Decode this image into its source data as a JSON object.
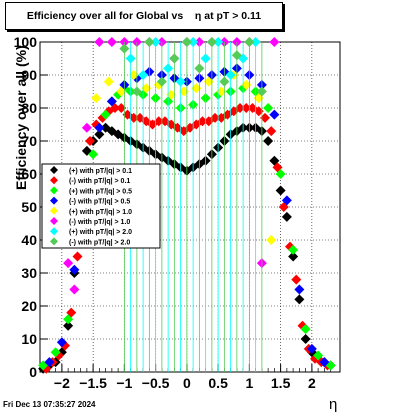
{
  "title": "Efficiency over all for Global vs    η at pT > 0.11",
  "footer": "Fri Dec 13 07:35:27 2024",
  "chart_data": {
    "type": "scatter",
    "xlabel": "η",
    "ylabel": "Efficiency over all (%)",
    "xlim": [
      -2.35,
      2.45
    ],
    "ylim": [
      0,
      100
    ],
    "xticks": [
      -2,
      -1.5,
      -1,
      -0.5,
      0,
      0.5,
      1,
      1.5,
      2
    ],
    "xtick_labels": [
      "−2",
      "−1.5",
      "−1",
      "−0.5",
      "0",
      "0.5",
      "1",
      "1.5",
      "2"
    ],
    "yticks": [
      0,
      10,
      20,
      30,
      40,
      50,
      60,
      70,
      80,
      90,
      100
    ],
    "grid": true,
    "legend_position": "left",
    "series": [
      {
        "name": "(+) with pT/|q| > 0.1",
        "color": "#000000",
        "x": [
          -2.3,
          -2.2,
          -2.1,
          -2.0,
          -1.9,
          -1.8,
          -1.7,
          -1.6,
          -1.5,
          -1.4,
          -1.3,
          -1.2,
          -1.1,
          -1.0,
          -0.9,
          -0.8,
          -0.7,
          -0.6,
          -0.5,
          -0.4,
          -0.3,
          -0.2,
          -0.1,
          0.0,
          0.1,
          0.2,
          0.3,
          0.4,
          0.5,
          0.6,
          0.7,
          0.8,
          0.9,
          1.0,
          1.1,
          1.2,
          1.3,
          1.4,
          1.5,
          1.6,
          1.7,
          1.8,
          1.9,
          2.0,
          2.1,
          2.2,
          2.3
        ],
        "y": [
          1,
          2,
          3,
          6,
          14,
          30,
          53,
          67,
          70,
          72,
          74,
          73,
          72,
          71,
          70,
          69,
          68,
          67,
          66,
          65,
          64,
          63,
          62,
          61,
          62,
          63,
          64,
          66,
          68,
          70,
          72,
          73,
          74,
          74,
          74,
          73,
          70,
          64,
          55,
          47,
          35,
          22,
          10,
          6,
          4,
          3,
          2
        ]
      },
      {
        "name": "(-) with pT/|q| > 0.1",
        "color": "#ff0000",
        "x": [
          -2.25,
          -2.15,
          -2.05,
          -1.95,
          -1.85,
          -1.75,
          -1.65,
          -1.55,
          -1.45,
          -1.35,
          -1.25,
          -1.15,
          -1.05,
          -0.95,
          -0.85,
          -0.75,
          -0.65,
          -0.55,
          -0.45,
          -0.35,
          -0.25,
          -0.15,
          -0.05,
          0.05,
          0.15,
          0.25,
          0.35,
          0.45,
          0.55,
          0.65,
          0.75,
          0.85,
          0.95,
          1.05,
          1.15,
          1.25,
          1.35,
          1.45,
          1.55,
          1.65,
          1.75,
          1.85,
          1.95,
          2.05,
          2.15,
          2.25
        ],
        "y": [
          1,
          3,
          5,
          8,
          18,
          35,
          55,
          70,
          75,
          77,
          79,
          80,
          80,
          78,
          77,
          77,
          76,
          75,
          76,
          76,
          75,
          74,
          73,
          74,
          75,
          76,
          76,
          77,
          77,
          78,
          79,
          80,
          80,
          80,
          79,
          77,
          73,
          62,
          50,
          38,
          28,
          14,
          7,
          4,
          3,
          2
        ]
      },
      {
        "name": "(+) with pT/|q| > 0.5",
        "color": "#00ff00",
        "x": [
          -2.3,
          -2.1,
          -1.9,
          -1.7,
          -1.5,
          -1.3,
          -1.2,
          -1.1,
          -1.0,
          -0.9,
          -0.7,
          -0.5,
          -0.3,
          -0.1,
          0.1,
          0.3,
          0.5,
          0.7,
          0.9,
          1.1,
          1.3,
          1.5,
          1.7,
          1.9,
          2.1,
          2.3
        ],
        "y": [
          2,
          6,
          16,
          40,
          66,
          78,
          82,
          84,
          86,
          85,
          84,
          83,
          82,
          80,
          81,
          83,
          84,
          85,
          86,
          85,
          80,
          60,
          37,
          13,
          5,
          2
        ]
      },
      {
        "name": "(-) with pT/|q| > 0.5",
        "color": "#0000ff",
        "x": [
          -2.2,
          -2.0,
          -1.8,
          -1.6,
          -1.4,
          -1.2,
          -1.0,
          -0.8,
          -0.6,
          -0.4,
          -0.2,
          0.0,
          0.2,
          0.4,
          0.6,
          0.8,
          1.0,
          1.2,
          1.4,
          1.6,
          1.8,
          2.0,
          2.2
        ],
        "y": [
          3,
          9,
          31,
          60,
          74,
          82,
          87,
          89,
          91,
          90,
          89,
          88,
          89,
          90,
          91,
          92,
          90,
          87,
          78,
          52,
          25,
          7,
          3
        ]
      },
      {
        "name": "(+) with pT/|q| > 1.0",
        "color": "#ffff00",
        "x": [
          -1.45,
          -1.25,
          -1.05,
          -0.85,
          -0.65,
          -0.45,
          -0.25,
          -0.05,
          0.15,
          0.35,
          0.55,
          0.75,
          0.95,
          1.15,
          1.35
        ],
        "y": [
          83,
          88,
          85,
          90,
          86,
          87,
          84,
          85,
          86,
          88,
          85,
          90,
          87,
          83,
          40
        ]
      },
      {
        "name": "(-) with pT/|q| > 1.0",
        "color": "#ff00ff",
        "x": [
          -1.9,
          -1.8,
          -1.6,
          -1.4,
          -1.2,
          -1.0,
          -0.8,
          -0.6,
          -0.4,
          -0.2,
          0.0,
          0.2,
          0.4,
          0.6,
          0.8,
          1.0,
          1.2,
          1.4
        ],
        "y": [
          33,
          25,
          74,
          100,
          100,
          100,
          100,
          100,
          100,
          95,
          100,
          100,
          100,
          100,
          100,
          100,
          33,
          100
        ]
      },
      {
        "name": "(+) with pT/|q| > 2.0",
        "color": "#00ffff",
        "x": [
          -0.9,
          -0.7,
          -0.5,
          -0.3,
          -0.1,
          0.1,
          0.3,
          0.5,
          0.7,
          0.9,
          1.1
        ],
        "y": [
          95,
          90,
          100,
          92,
          88,
          100,
          95,
          100,
          90,
          95,
          100
        ]
      },
      {
        "name": "(-) with pT/|q| > 2.0",
        "color": "#55cc55",
        "x": [
          -1.0,
          -0.8,
          -0.6,
          -0.4,
          -0.2,
          0.0,
          0.2,
          0.4,
          0.6,
          0.8,
          1.0,
          1.2
        ],
        "y": [
          98,
          85,
          100,
          88,
          95,
          100,
          92,
          100,
          88,
          96,
          100,
          85
        ]
      }
    ]
  }
}
